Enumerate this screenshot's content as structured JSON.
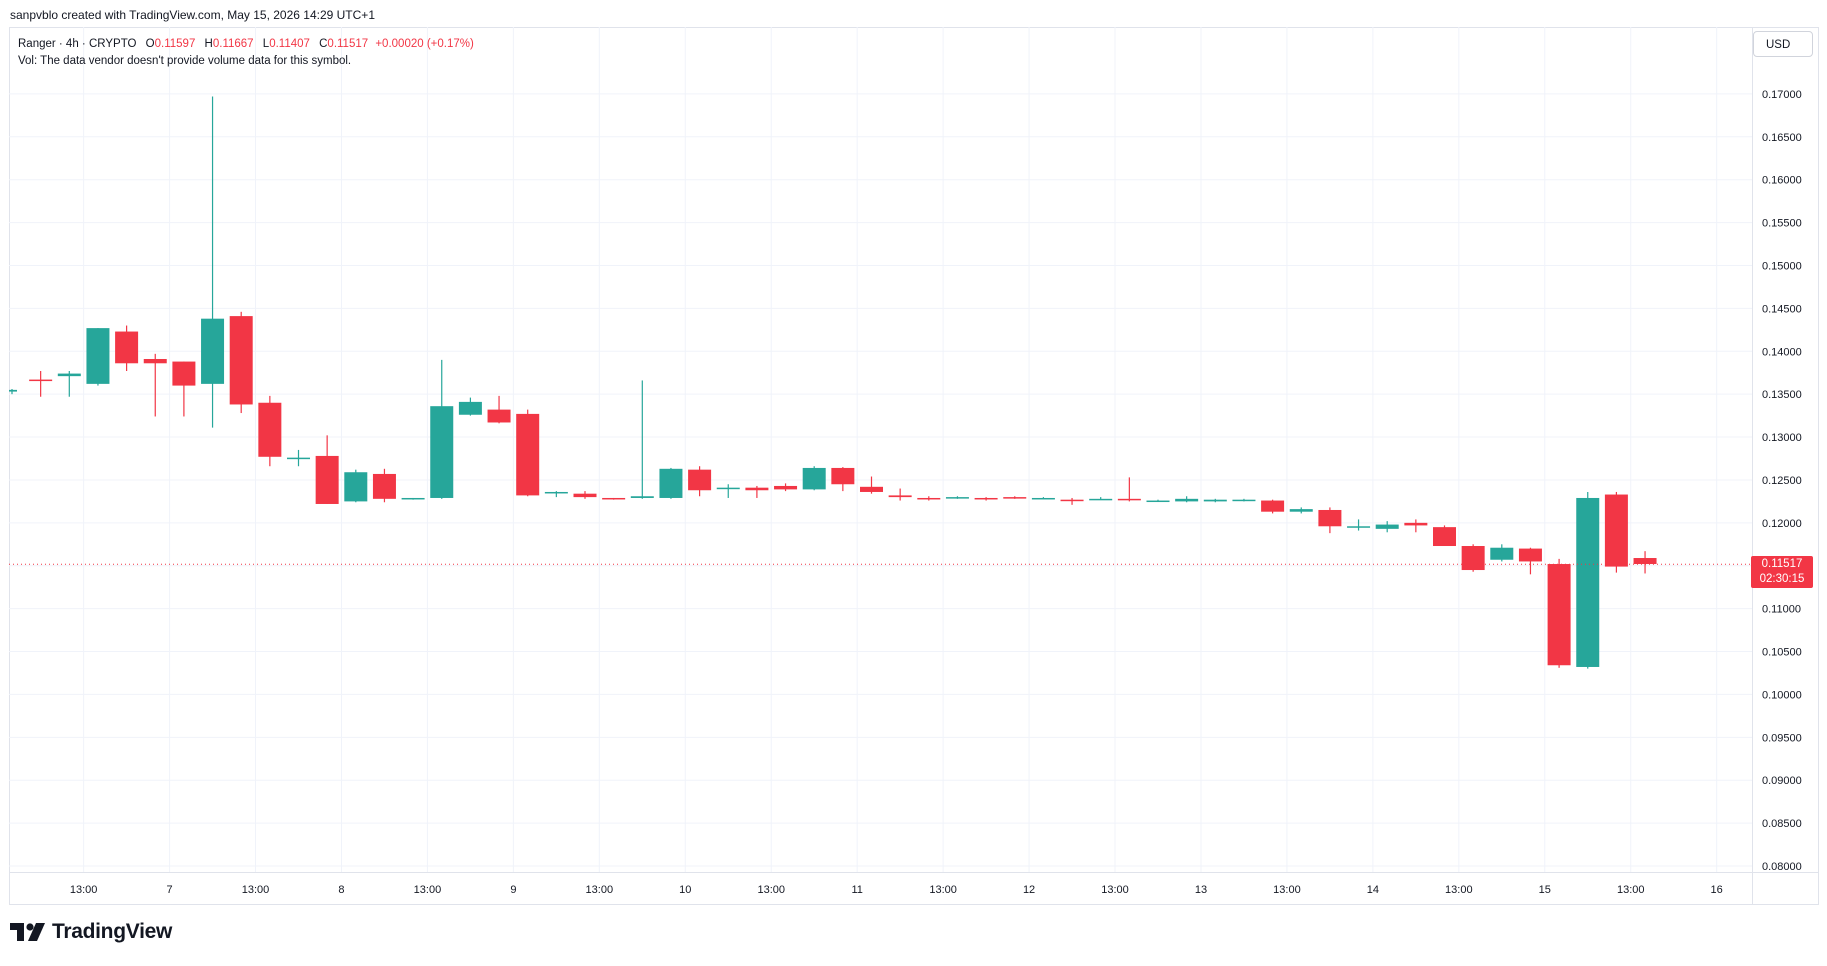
{
  "header": {
    "attribution": "sanpvblo created with TradingView.com, May 15, 2026 14:29 UTC+1"
  },
  "legend": {
    "symbol": "Ranger · 4h · CRYPTO",
    "open_label": "O",
    "open_value": "0.11597",
    "high_label": "H",
    "high_value": "0.11667",
    "low_label": "L",
    "low_value": "0.11407",
    "close_label": "C",
    "close_value": "0.11517",
    "change": "+0.00020 (+0.17%)",
    "volume_note": "Vol: The data vendor doesn't provide volume data for this symbol."
  },
  "currency_button": "USD",
  "last_price": {
    "price": "0.11517",
    "countdown": "02:30:15"
  },
  "brand": {
    "name": "TradingView"
  },
  "colors": {
    "up": "#26a69a",
    "down": "#f23645",
    "grid": "#f0f3fa"
  },
  "chart_data": {
    "type": "candlestick",
    "timeframe": "4h",
    "y_ticks": [
      "0.08000",
      "0.08500",
      "0.09000",
      "0.09500",
      "0.10000",
      "0.10500",
      "0.11000",
      "0.11500",
      "0.12000",
      "0.12500",
      "0.13000",
      "0.13500",
      "0.14000",
      "0.14500",
      "0.15000",
      "0.15500",
      "0.16000",
      "0.16500",
      "0.17000"
    ],
    "ylim": [
      0.0793,
      0.1778
    ],
    "x_ticks": [
      {
        "label": "13:00",
        "index": 2.5
      },
      {
        "label": "7",
        "index": 5.5
      },
      {
        "label": "13:00",
        "index": 8.5
      },
      {
        "label": "8",
        "index": 11.5
      },
      {
        "label": "13:00",
        "index": 14.5
      },
      {
        "label": "9",
        "index": 17.5
      },
      {
        "label": "13:00",
        "index": 20.5
      },
      {
        "label": "10",
        "index": 23.5
      },
      {
        "label": "13:00",
        "index": 26.5
      },
      {
        "label": "11",
        "index": 29.5
      },
      {
        "label": "13:00",
        "index": 32.5
      },
      {
        "label": "12",
        "index": 35.5
      },
      {
        "label": "13:00",
        "index": 38.5
      },
      {
        "label": "13",
        "index": 41.5
      },
      {
        "label": "13:00",
        "index": 44.5
      },
      {
        "label": "14",
        "index": 47.5
      },
      {
        "label": "13:00",
        "index": 50.5
      },
      {
        "label": "15",
        "index": 53.5
      },
      {
        "label": "13:00",
        "index": 56.5
      },
      {
        "label": "16",
        "index": 59.5
      }
    ],
    "candles": [
      {
        "o": 0.1353,
        "h": 0.1356,
        "l": 0.135,
        "c": 0.1355
      },
      {
        "o": 0.1367,
        "h": 0.1377,
        "l": 0.1347,
        "c": 0.1366
      },
      {
        "o": 0.1371,
        "h": 0.1377,
        "l": 0.1347,
        "c": 0.1374
      },
      {
        "o": 0.1362,
        "h": 0.1427,
        "l": 0.136,
        "c": 0.1427
      },
      {
        "o": 0.1423,
        "h": 0.143,
        "l": 0.1377,
        "c": 0.1386
      },
      {
        "o": 0.1391,
        "h": 0.1397,
        "l": 0.1324,
        "c": 0.1386
      },
      {
        "o": 0.1388,
        "h": 0.1388,
        "l": 0.1324,
        "c": 0.136
      },
      {
        "o": 0.1362,
        "h": 0.1697,
        "l": 0.1311,
        "c": 0.1438
      },
      {
        "o": 0.1441,
        "h": 0.1446,
        "l": 0.1328,
        "c": 0.1338
      },
      {
        "o": 0.134,
        "h": 0.1348,
        "l": 0.1266,
        "c": 0.1277
      },
      {
        "o": 0.1276,
        "h": 0.1285,
        "l": 0.1266,
        "c": 0.1276
      },
      {
        "o": 0.1278,
        "h": 0.1302,
        "l": 0.1222,
        "c": 0.1222
      },
      {
        "o": 0.1225,
        "h": 0.1262,
        "l": 0.1224,
        "c": 0.1259
      },
      {
        "o": 0.1257,
        "h": 0.1263,
        "l": 0.1224,
        "c": 0.1228
      },
      {
        "o": 0.1228,
        "h": 0.1229,
        "l": 0.1227,
        "c": 0.1229
      },
      {
        "o": 0.1229,
        "h": 0.139,
        "l": 0.1228,
        "c": 0.1336
      },
      {
        "o": 0.1326,
        "h": 0.1346,
        "l": 0.1325,
        "c": 0.1341
      },
      {
        "o": 0.1332,
        "h": 0.1348,
        "l": 0.1316,
        "c": 0.1317
      },
      {
        "o": 0.1327,
        "h": 0.1332,
        "l": 0.1231,
        "c": 0.1232
      },
      {
        "o": 0.1235,
        "h": 0.1237,
        "l": 0.123,
        "c": 0.1236
      },
      {
        "o": 0.1234,
        "h": 0.1237,
        "l": 0.1228,
        "c": 0.123
      },
      {
        "o": 0.1229,
        "h": 0.1229,
        "l": 0.1227,
        "c": 0.1228
      },
      {
        "o": 0.1229,
        "h": 0.1366,
        "l": 0.1228,
        "c": 0.1231
      },
      {
        "o": 0.1229,
        "h": 0.1264,
        "l": 0.1228,
        "c": 0.1263
      },
      {
        "o": 0.1262,
        "h": 0.1266,
        "l": 0.1231,
        "c": 0.1238
      },
      {
        "o": 0.124,
        "h": 0.1245,
        "l": 0.1229,
        "c": 0.1241
      },
      {
        "o": 0.1241,
        "h": 0.1243,
        "l": 0.1229,
        "c": 0.1238
      },
      {
        "o": 0.1243,
        "h": 0.1246,
        "l": 0.1237,
        "c": 0.1239
      },
      {
        "o": 0.1239,
        "h": 0.1266,
        "l": 0.1238,
        "c": 0.1264
      },
      {
        "o": 0.1264,
        "h": 0.1265,
        "l": 0.1237,
        "c": 0.1245
      },
      {
        "o": 0.1242,
        "h": 0.1254,
        "l": 0.1234,
        "c": 0.1236
      },
      {
        "o": 0.1232,
        "h": 0.124,
        "l": 0.1226,
        "c": 0.123
      },
      {
        "o": 0.1229,
        "h": 0.1231,
        "l": 0.1226,
        "c": 0.1228
      },
      {
        "o": 0.1229,
        "h": 0.1231,
        "l": 0.1228,
        "c": 0.123
      },
      {
        "o": 0.1229,
        "h": 0.123,
        "l": 0.1226,
        "c": 0.1228
      },
      {
        "o": 0.123,
        "h": 0.1231,
        "l": 0.1228,
        "c": 0.1229
      },
      {
        "o": 0.1229,
        "h": 0.123,
        "l": 0.1228,
        "c": 0.1229
      },
      {
        "o": 0.1227,
        "h": 0.1229,
        "l": 0.1221,
        "c": 0.1226
      },
      {
        "o": 0.1228,
        "h": 0.123,
        "l": 0.1227,
        "c": 0.1228
      },
      {
        "o": 0.1228,
        "h": 0.1253,
        "l": 0.1225,
        "c": 0.1227
      },
      {
        "o": 0.1226,
        "h": 0.1227,
        "l": 0.1225,
        "c": 0.1226
      },
      {
        "o": 0.1225,
        "h": 0.1231,
        "l": 0.1224,
        "c": 0.1228
      },
      {
        "o": 0.1225,
        "h": 0.1228,
        "l": 0.1224,
        "c": 0.1227
      },
      {
        "o": 0.1226,
        "h": 0.1228,
        "l": 0.1225,
        "c": 0.1227
      },
      {
        "o": 0.1226,
        "h": 0.1227,
        "l": 0.1211,
        "c": 0.1213
      },
      {
        "o": 0.1213,
        "h": 0.1218,
        "l": 0.1211,
        "c": 0.1216
      },
      {
        "o": 0.1215,
        "h": 0.1218,
        "l": 0.1188,
        "c": 0.1196
      },
      {
        "o": 0.1195,
        "h": 0.1204,
        "l": 0.1191,
        "c": 0.1196
      },
      {
        "o": 0.1193,
        "h": 0.1202,
        "l": 0.1189,
        "c": 0.1198
      },
      {
        "o": 0.12,
        "h": 0.1204,
        "l": 0.1189,
        "c": 0.1197
      },
      {
        "o": 0.1195,
        "h": 0.1197,
        "l": 0.1173,
        "c": 0.1173
      },
      {
        "o": 0.1173,
        "h": 0.1175,
        "l": 0.1143,
        "c": 0.1145
      },
      {
        "o": 0.1157,
        "h": 0.1175,
        "l": 0.1155,
        "c": 0.1171
      },
      {
        "o": 0.117,
        "h": 0.1171,
        "l": 0.114,
        "c": 0.1155
      },
      {
        "o": 0.1152,
        "h": 0.1158,
        "l": 0.1031,
        "c": 0.1034
      },
      {
        "o": 0.1032,
        "h": 0.1236,
        "l": 0.103,
        "c": 0.1229
      },
      {
        "o": 0.1233,
        "h": 0.1236,
        "l": 0.1142,
        "c": 0.1149
      },
      {
        "o": 0.1159,
        "h": 0.1167,
        "l": 0.1141,
        "c": 0.1152
      }
    ],
    "last_price": 0.11517
  }
}
